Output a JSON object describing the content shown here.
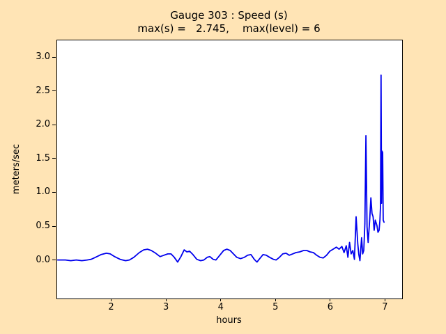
{
  "title": {
    "line1": "Gauge 303 : Speed (s)",
    "line2": "max(s) =   2.745,    max(level) = 6"
  },
  "axes": {
    "xlabel": "hours",
    "ylabel": "meters/sec"
  },
  "chart_data": {
    "type": "line",
    "title": "Gauge 303 : Speed (s)",
    "subtitle": "max(s) =   2.745,    max(level) = 6",
    "xlabel": "hours",
    "ylabel": "meters/sec",
    "max_s": 2.745,
    "max_level": 6,
    "grid": false,
    "legend": "none",
    "line_color": "#0000ee",
    "plot_bg": "#ffffff",
    "figure_bg": "#ffe4b5",
    "xlim": [
      1.0,
      7.3
    ],
    "ylim": [
      -0.56,
      3.26
    ],
    "x_ticks": [
      {
        "v": 2,
        "label": "2"
      },
      {
        "v": 3,
        "label": "3"
      },
      {
        "v": 4,
        "label": "4"
      },
      {
        "v": 5,
        "label": "5"
      },
      {
        "v": 6,
        "label": "6"
      },
      {
        "v": 7,
        "label": "7"
      }
    ],
    "y_ticks": [
      {
        "v": 0.0,
        "label": "0.0"
      },
      {
        "v": 0.5,
        "label": "0.5"
      },
      {
        "v": 1.0,
        "label": "1.0"
      },
      {
        "v": 1.5,
        "label": "1.5"
      },
      {
        "v": 2.0,
        "label": "2.0"
      },
      {
        "v": 2.5,
        "label": "2.5"
      },
      {
        "v": 3.0,
        "label": "3.0"
      }
    ],
    "x": [
      1.01,
      1.15,
      1.25,
      1.35,
      1.45,
      1.55,
      1.62,
      1.7,
      1.8,
      1.9,
      1.97,
      2.05,
      2.15,
      2.25,
      2.32,
      2.4,
      2.5,
      2.58,
      2.65,
      2.72,
      2.8,
      2.88,
      2.95,
      3.02,
      3.08,
      3.14,
      3.2,
      3.26,
      3.32,
      3.37,
      3.42,
      3.48,
      3.55,
      3.62,
      3.68,
      3.74,
      3.79,
      3.85,
      3.9,
      3.97,
      4.04,
      4.1,
      4.16,
      4.22,
      4.28,
      4.35,
      4.42,
      4.48,
      4.54,
      4.6,
      4.65,
      4.7,
      4.76,
      4.82,
      4.88,
      4.95,
      5.0,
      5.06,
      5.12,
      5.18,
      5.24,
      5.3,
      5.36,
      5.43,
      5.5,
      5.56,
      5.62,
      5.68,
      5.74,
      5.8,
      5.86,
      5.92,
      5.98,
      6.04,
      6.1,
      6.15,
      6.2,
      6.24,
      6.28,
      6.31,
      6.34,
      6.37,
      6.4,
      6.43,
      6.46,
      6.49,
      6.51,
      6.53,
      6.56,
      6.58,
      6.6,
      6.62,
      6.64,
      6.66,
      6.68,
      6.71,
      6.73,
      6.75,
      6.77,
      6.79,
      6.81,
      6.84,
      6.86,
      6.88,
      6.895,
      6.905,
      6.915,
      6.925,
      6.935,
      6.945,
      6.955,
      6.97
    ],
    "y": [
      0.01,
      0.01,
      0.0,
      0.01,
      0.0,
      0.01,
      0.02,
      0.05,
      0.09,
      0.11,
      0.1,
      0.06,
      0.02,
      0.0,
      0.01,
      0.05,
      0.12,
      0.16,
      0.17,
      0.15,
      0.11,
      0.06,
      0.08,
      0.1,
      0.1,
      0.05,
      -0.02,
      0.06,
      0.16,
      0.13,
      0.14,
      0.09,
      0.02,
      0.0,
      0.01,
      0.05,
      0.06,
      0.02,
      0.01,
      0.08,
      0.15,
      0.17,
      0.15,
      0.1,
      0.05,
      0.03,
      0.05,
      0.08,
      0.09,
      0.02,
      -0.02,
      0.03,
      0.09,
      0.08,
      0.05,
      0.02,
      0.01,
      0.05,
      0.1,
      0.11,
      0.08,
      0.1,
      0.12,
      0.13,
      0.15,
      0.15,
      0.13,
      0.12,
      0.08,
      0.05,
      0.04,
      0.08,
      0.14,
      0.17,
      0.2,
      0.17,
      0.21,
      0.12,
      0.22,
      0.05,
      0.27,
      0.1,
      0.15,
      0.02,
      0.65,
      0.25,
      0.09,
      0.0,
      0.34,
      0.1,
      0.15,
      0.55,
      1.85,
      0.5,
      0.27,
      0.62,
      0.93,
      0.7,
      0.65,
      0.45,
      0.6,
      0.52,
      0.42,
      0.45,
      0.6,
      0.8,
      2.745,
      0.85,
      1.62,
      1.6,
      0.6,
      0.57
    ]
  }
}
